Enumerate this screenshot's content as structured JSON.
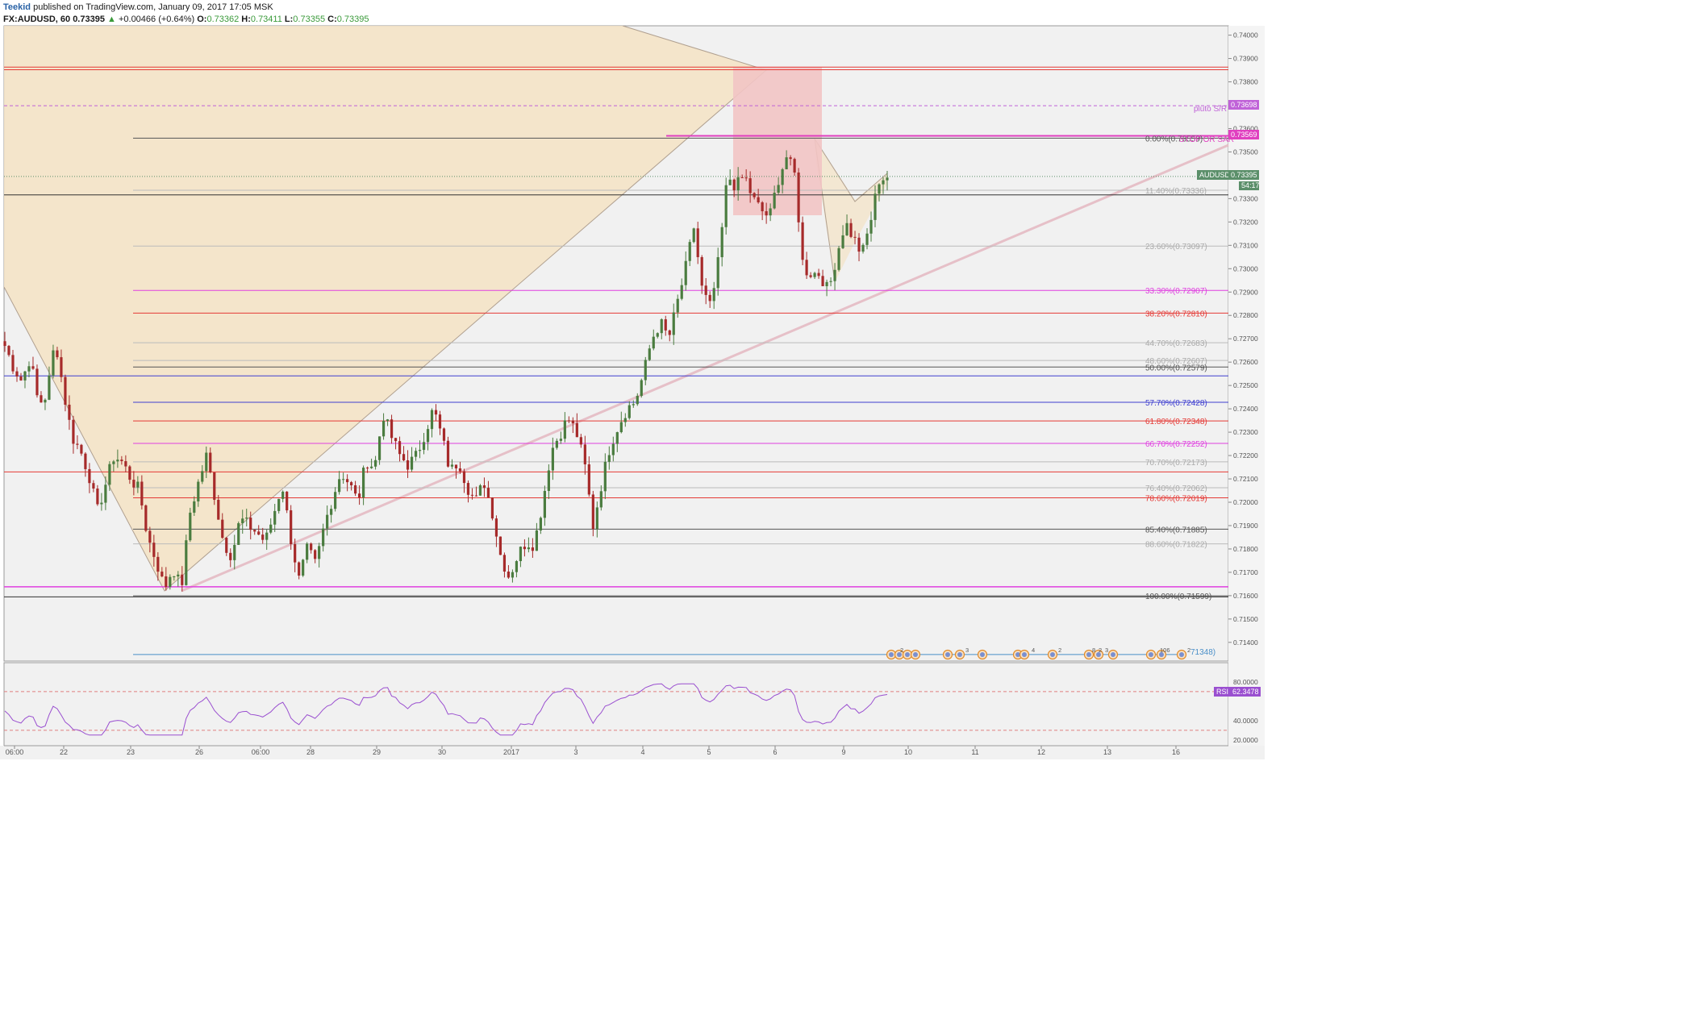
{
  "header": {
    "author": "Teekid",
    "published": "published on TradingView.com, January 09, 2017 17:05 MSK",
    "symbol": "FX:AUDUSD, 60",
    "last": "0.73395",
    "change": "+0.00466 (+0.64%)",
    "o_label": "O:",
    "o": "0.73362",
    "h_label": "H:",
    "h": "0.73411",
    "l_label": "L:",
    "l": "0.73355",
    "c_label": "C:",
    "c": "0.73395"
  },
  "price_axis": {
    "ticks": [
      "0.74000",
      "0.73900",
      "0.73800",
      "0.73700",
      "0.73600",
      "0.73500",
      "0.73400",
      "0.73300",
      "0.73200",
      "0.73100",
      "0.73000",
      "0.72900",
      "0.72800",
      "0.72700",
      "0.72600",
      "0.72500",
      "0.72400",
      "0.72300",
      "0.72200",
      "0.72100",
      "0.72000",
      "0.71900",
      "0.71800",
      "0.71700",
      "0.71600",
      "0.71500",
      "0.71400"
    ],
    "tick_values": [
      0.74,
      0.739,
      0.738,
      0.737,
      0.736,
      0.735,
      0.734,
      0.733,
      0.732,
      0.731,
      0.73,
      0.729,
      0.728,
      0.727,
      0.726,
      0.725,
      0.724,
      0.723,
      0.722,
      0.721,
      0.72,
      0.719,
      0.718,
      0.717,
      0.716,
      0.715,
      0.714
    ],
    "range": [
      0.7132,
      0.7404
    ],
    "badges": {
      "pluto_value": "0.73698",
      "stop_value": "0.73569",
      "price_name": "AUDUSD",
      "price_value": "0.73395",
      "countdown": "54:17"
    }
  },
  "time_axis": {
    "labels": [
      "06:00",
      "22",
      "23",
      "26",
      "06:00",
      "28",
      "29",
      "30",
      "2017",
      "3",
      "4",
      "5",
      "6",
      "9",
      "10",
      "11",
      "12",
      "13",
      "16"
    ]
  },
  "fib": {
    "levels": [
      {
        "label": "0.00%(0.73559)",
        "value": 0.73559,
        "color": "#555555"
      },
      {
        "label": "11.40%(0.73336)",
        "value": 0.73336,
        "color": "#bbbbbb"
      },
      {
        "label": "23.60%(0.73097)",
        "value": 0.73097,
        "color": "#bbbbbb"
      },
      {
        "label": "33.30%(0.72907)",
        "value": 0.72907,
        "color": "#e040e0"
      },
      {
        "label": "38.20%(0.72810)",
        "value": 0.7281,
        "color": "#e53935"
      },
      {
        "label": "44.70%(0.72683)",
        "value": 0.72683,
        "color": "#bbbbbb"
      },
      {
        "label": "48.60%(0.72607)",
        "value": 0.72607,
        "color": "#bbbbbb"
      },
      {
        "label": "50.00%(0.72579)",
        "value": 0.72579,
        "color": "#555555"
      },
      {
        "label": "57.70%(0.72428)",
        "value": 0.72428,
        "color": "#3f3fd0"
      },
      {
        "label": "61.80%(0.72348)",
        "value": 0.72348,
        "color": "#e53935"
      },
      {
        "label": "66.70%(0.72252)",
        "value": 0.72252,
        "color": "#e040e0"
      },
      {
        "label": "70.70%(0.72173)",
        "value": 0.72173,
        "color": "#bbbbbb"
      },
      {
        "label": "76.40%(0.72062)",
        "value": 0.72062,
        "color": "#bbbbbb"
      },
      {
        "label": "78.60%(0.72019)",
        "value": 0.72019,
        "color": "#e53935"
      },
      {
        "label": "85.40%(0.71885)",
        "value": 0.71885,
        "color": "#555555"
      },
      {
        "label": "88.60%(0.71822)",
        "value": 0.71822,
        "color": "#bbbbbb"
      },
      {
        "label": "100.00%(0.71599)",
        "value": 0.71599,
        "color": "#555555"
      }
    ],
    "extra_label": "71348)",
    "extra_value": 0.71348
  },
  "annotations": {
    "pluto": "pluto S/R",
    "stop": "STOP OR SAR"
  },
  "rsi": {
    "name": "RSI",
    "value": "62.3478",
    "ticks": [
      "80.0000",
      "40.0000",
      "20.0000"
    ],
    "tick_values": [
      80,
      40,
      20
    ],
    "range": [
      14,
      100
    ]
  },
  "events": {
    "counts": [
      "2",
      "3",
      "4",
      "2",
      "8",
      "2",
      "3",
      "106",
      "2"
    ]
  },
  "colors": {
    "bull": "#4a7c3f",
    "bear": "#a62a2a",
    "rsi": "#9a4fd0",
    "fill_tan": "#f4e3c4",
    "fill_red": "#f2c4c4",
    "price_badge": "#5b8f6a",
    "stop_badge": "#e040c0",
    "pluto_badge": "#c062d8"
  },
  "chart_data": {
    "type": "candlestick",
    "symbol": "FX:AUDUSD",
    "interval": "60",
    "ylim": [
      0.7132,
      0.7404
    ],
    "anchors": [
      [
        0.7267,
        0.7258,
        0.7252,
        0.7262,
        0.7242
      ],
      [
        0.7246,
        0.727,
        0.7247,
        0.7228,
        0.7222
      ],
      [
        0.7212,
        0.7196,
        0.7208,
        0.722,
        0.7217
      ],
      [
        0.721,
        0.7205,
        0.7185,
        0.7175,
        0.7163
      ],
      [
        0.7172,
        0.7163,
        0.7195,
        0.7208,
        0.722
      ],
      [
        0.7202,
        0.7183,
        0.7177,
        0.7193,
        0.719
      ],
      [
        0.7187,
        0.7183,
        0.7195,
        0.7208,
        0.7185
      ],
      [
        0.7167,
        0.718,
        0.7173,
        0.719,
        0.7202
      ],
      [
        0.7213,
        0.7208,
        0.72,
        0.7218,
        0.7215
      ],
      [
        0.7238,
        0.7228,
        0.722,
        0.7216,
        0.722
      ],
      [
        0.723,
        0.724,
        0.7228,
        0.7213,
        0.7218
      ],
      [
        0.7207,
        0.72,
        0.7209,
        0.7196,
        0.7177
      ],
      [
        0.7168,
        0.7177,
        0.7183,
        0.7182,
        0.72
      ],
      [
        0.7222,
        0.7229,
        0.7236,
        0.723,
        0.7216
      ],
      [
        0.719,
        0.7208,
        0.7224,
        0.7233,
        0.724
      ],
      [
        0.7243,
        0.7255,
        0.727,
        0.7277,
        0.727
      ],
      [
        0.7285,
        0.73,
        0.7318,
        0.729,
        0.7283
      ],
      [
        0.7305,
        0.734,
        0.7335,
        0.734,
        0.733
      ],
      [
        0.7325,
        0.7322,
        0.7338,
        0.7348,
        0.734
      ],
      [
        0.73,
        0.7298,
        0.7298,
        0.729,
        0.7306
      ],
      [
        0.732,
        0.7313,
        0.7306,
        0.732,
        0.7338
      ],
      [
        0.73395
      ]
    ]
  }
}
